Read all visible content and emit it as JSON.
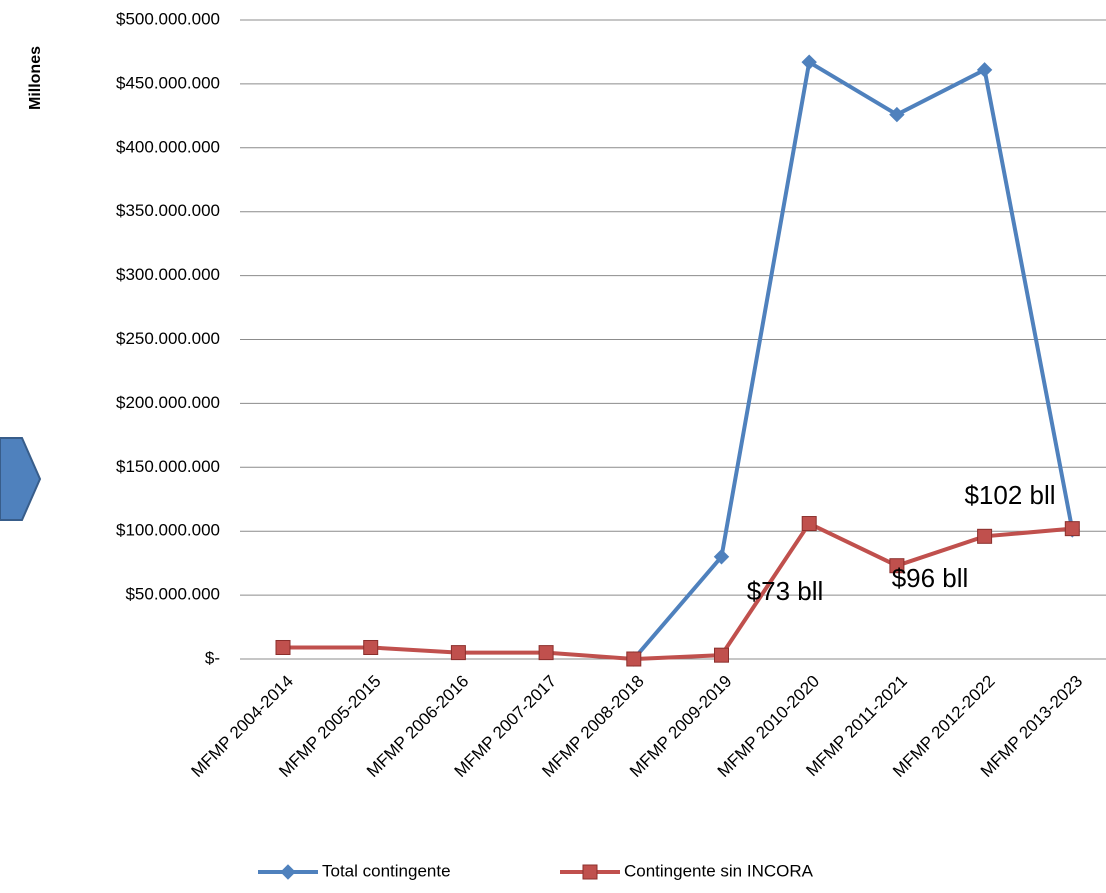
{
  "chart_data": {
    "type": "line",
    "y_label": "Millones",
    "categories": [
      "MFMP 2004-2014",
      "MFMP 2005-2015",
      "MFMP 2006-2016",
      "MFMP 2007-2017",
      "MFMP 2008-2018",
      "MFMP 2009-2019",
      "MFMP 2010-2020",
      "MFMP 2011-2021",
      "MFMP 2012-2022",
      "MFMP 2013-2023"
    ],
    "series": [
      {
        "name": "Total contingente",
        "color": "#4f81bd",
        "marker": "diamond",
        "values": [
          null,
          null,
          null,
          null,
          0,
          80000000,
          467000000,
          426000000,
          461000000,
          101000000
        ]
      },
      {
        "name": "Contingente sin INCORA",
        "color": "#c0504d",
        "marker": "square",
        "values": [
          9000000,
          9000000,
          5000000,
          5000000,
          0,
          3000000,
          106000000,
          73000000,
          96000000,
          102000000
        ]
      }
    ],
    "ylim": [
      0,
      500000000
    ],
    "yticks": [
      {
        "value": 0,
        "label": "$-"
      },
      {
        "value": 50000000,
        "label": "$50.000.000"
      },
      {
        "value": 100000000,
        "label": "$100.000.000"
      },
      {
        "value": 150000000,
        "label": "$150.000.000"
      },
      {
        "value": 200000000,
        "label": "$200.000.000"
      },
      {
        "value": 250000000,
        "label": "$250.000.000"
      },
      {
        "value": 300000000,
        "label": "$300.000.000"
      },
      {
        "value": 350000000,
        "label": "$350.000.000"
      },
      {
        "value": 400000000,
        "label": "$400.000.000"
      },
      {
        "value": 450000000,
        "label": "$450.000.000"
      },
      {
        "value": 500000000,
        "label": "$500.000.000"
      }
    ],
    "grid": true,
    "legend": "bottom",
    "annotations": [
      "$73 bll",
      "$96 bll",
      "$102 bll"
    ]
  }
}
